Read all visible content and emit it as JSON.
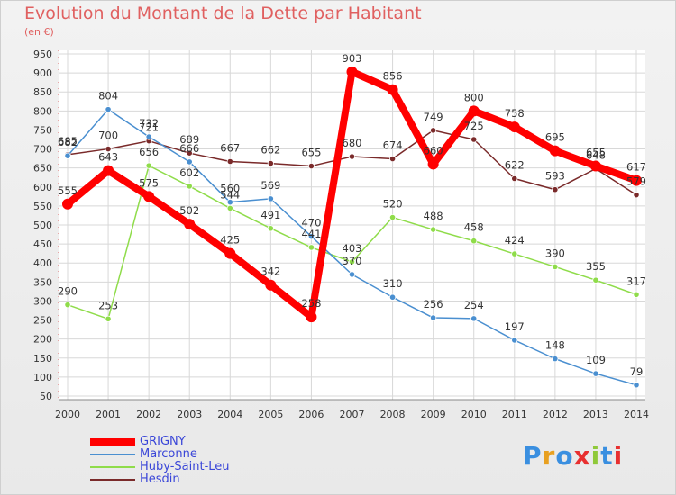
{
  "title": "Evolution du Montant de la Dette par Habitant",
  "subtitle": "(en €)",
  "logo": "Proxiti",
  "chart_data": {
    "type": "line",
    "title": "Evolution du Montant de la Dette par Habitant",
    "ylabel": "(en €)",
    "x": [
      "2000",
      "2001",
      "2002",
      "2003",
      "2004",
      "2005",
      "2006",
      "2007",
      "2008",
      "2009",
      "2010",
      "2011",
      "2012",
      "2013",
      "2014"
    ],
    "ylim": [
      50,
      950
    ],
    "yticks": [
      50,
      100,
      150,
      200,
      250,
      300,
      350,
      400,
      450,
      500,
      550,
      600,
      650,
      700,
      750,
      800,
      850,
      900,
      950
    ],
    "grid": true,
    "legend": "bottom-left",
    "series": [
      {
        "name": "GRIGNY",
        "color": "#ff0000",
        "values": [
          555,
          643,
          575,
          502,
          425,
          342,
          258,
          903,
          856,
          660,
          800,
          758,
          695,
          655,
          617
        ]
      },
      {
        "name": "Marconne",
        "color": "#4a8fd0",
        "values": [
          682,
          804,
          732,
          666,
          560,
          569,
          470,
          370,
          310,
          256,
          254,
          197,
          148,
          109,
          79
        ]
      },
      {
        "name": "Huby-Saint-Leu",
        "color": "#8fdc4a",
        "values": [
          290,
          253,
          656,
          602,
          544,
          491,
          441,
          403,
          520,
          488,
          458,
          424,
          390,
          355,
          317
        ]
      },
      {
        "name": "Hesdin",
        "color": "#7a2a2a",
        "values": [
          685,
          700,
          721,
          689,
          667,
          662,
          655,
          680,
          674,
          749,
          725,
          622,
          593,
          648,
          579
        ]
      }
    ]
  }
}
